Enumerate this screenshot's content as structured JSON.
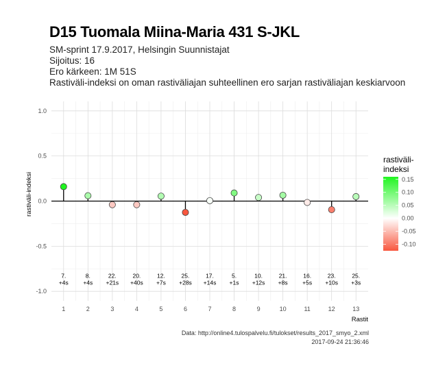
{
  "header": {
    "title": "D15 Tuomala Miina-Maria 431 S-JKL",
    "line1": "SM-sprint 17.9.2017, Helsingin Suunnistajat",
    "line2": "Sijoitus: 16",
    "line3": "Ero kärkeen: 1M 51S",
    "line4": "Rastiväli-indeksi on oman rastiväliajan suhteellinen ero sarjan rastiväliajan keskiarvoon"
  },
  "caption": {
    "source": "Data: http://online4.tulospalvelu.fi/tulokset/results_2017_smyo_2.xml",
    "timestamp": "2017-09-24 21:36:46"
  },
  "chart_data": {
    "type": "scatter",
    "xlabel": "Rastit",
    "ylabel": "rastiväli-indeksi",
    "x": [
      1,
      2,
      3,
      4,
      5,
      6,
      7,
      8,
      9,
      10,
      11,
      12,
      13
    ],
    "values": [
      0.16,
      0.06,
      -0.04,
      -0.04,
      0.055,
      -0.125,
      0.005,
      0.09,
      0.04,
      0.065,
      -0.015,
      -0.095,
      0.05
    ],
    "point_labels_rank": [
      "7.",
      "8.",
      "22.",
      "20.",
      "12.",
      "25.",
      "17.",
      "5.",
      "10.",
      "21.",
      "16.",
      "23.",
      "25."
    ],
    "point_labels_diff": [
      "+4s",
      "+4s",
      "+21s",
      "+40s",
      "+7s",
      "+28s",
      "+14s",
      "+1s",
      "+12s",
      "+8s",
      "+5s",
      "+10s",
      "+3s"
    ],
    "xlim": [
      0.5,
      13.5
    ],
    "ylim": [
      -1.0,
      1.0
    ],
    "xticks": [
      "1",
      "2",
      "3",
      "4",
      "5",
      "6",
      "7",
      "8",
      "9",
      "10",
      "11",
      "12",
      "13"
    ],
    "yticks": [
      "-1.0",
      "-0.5",
      "0.0",
      "0.5",
      "1.0"
    ],
    "grid": true,
    "legend": {
      "title_line1": "rastiväli-",
      "title_line2": "indeksi",
      "ticks": [
        "0.15",
        "0.10",
        "0.05",
        "0.00",
        "-0.05",
        "-0.10"
      ],
      "low_color": "#f8573f",
      "mid_color": "#ffffff",
      "high_color": "#20f520",
      "range": [
        -0.125,
        0.16
      ],
      "placement": "right"
    }
  }
}
